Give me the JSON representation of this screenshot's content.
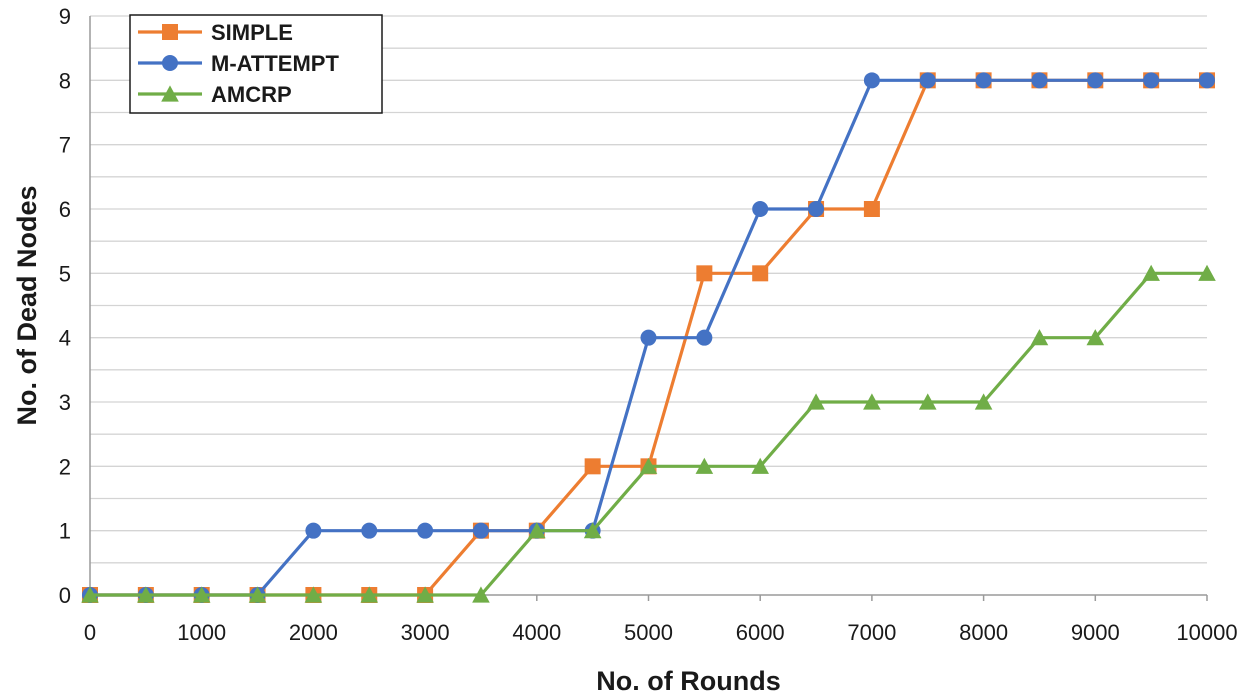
{
  "chart_data": {
    "type": "line",
    "title": "",
    "xlabel": "No. of Rounds",
    "ylabel": "No. of Dead Nodes",
    "x": [
      0,
      500,
      1000,
      1500,
      2000,
      2500,
      3000,
      3500,
      4000,
      4500,
      5000,
      5500,
      6000,
      6500,
      7000,
      7500,
      8000,
      8500,
      9000,
      9500,
      10000
    ],
    "xlim": [
      0,
      10000
    ],
    "ylim": [
      0,
      9
    ],
    "xticks": [
      "0",
      "1000",
      "2000",
      "3000",
      "4000",
      "5000",
      "6000",
      "7000",
      "8000",
      "9000",
      "10000"
    ],
    "xtick_values": [
      0,
      1000,
      2000,
      3000,
      4000,
      5000,
      6000,
      7000,
      8000,
      9000,
      10000
    ],
    "yticks": [
      "0",
      "1",
      "2",
      "3",
      "4",
      "5",
      "6",
      "7",
      "8",
      "9"
    ],
    "ytick_values": [
      0,
      1,
      2,
      3,
      4,
      5,
      6,
      7,
      8,
      9
    ],
    "grid": "horizontal",
    "legend_position": "top-left",
    "series": [
      {
        "name": "SIMPLE",
        "color": "#ED7D31",
        "marker": "square",
        "values": [
          0,
          0,
          0,
          0,
          0,
          0,
          0,
          1,
          1,
          2,
          2,
          5,
          5,
          6,
          6,
          8,
          8,
          8,
          8,
          8,
          8
        ]
      },
      {
        "name": "M-ATTEMPT",
        "color": "#4472C4",
        "marker": "circle",
        "values": [
          0,
          0,
          0,
          0,
          1,
          1,
          1,
          1,
          1,
          1,
          4,
          4,
          6,
          6,
          8,
          8,
          8,
          8,
          8,
          8,
          8
        ]
      },
      {
        "name": "AMCRP",
        "color": "#70AD47",
        "marker": "triangle",
        "values": [
          0,
          0,
          0,
          0,
          0,
          0,
          0,
          0,
          1,
          1,
          2,
          2,
          2,
          3,
          3,
          3,
          3,
          4,
          4,
          5,
          5
        ]
      }
    ]
  }
}
